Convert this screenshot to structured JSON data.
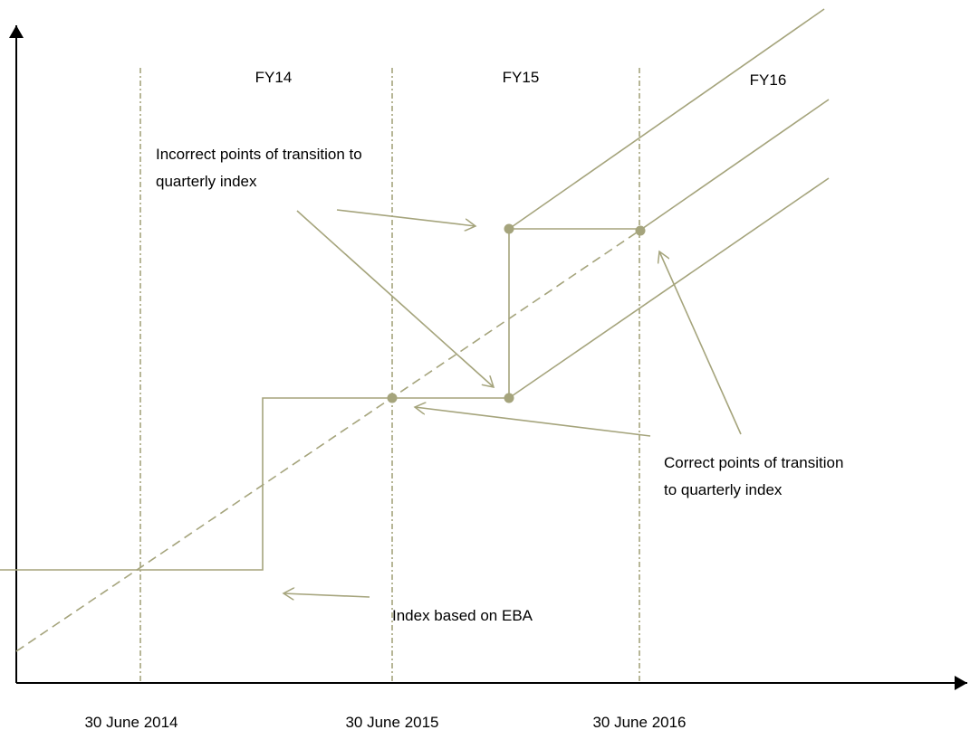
{
  "periods": [
    "FY14",
    "FY15",
    "FY16"
  ],
  "dates": [
    "30 June 2014",
    "30 June 2015",
    "30 June 2016"
  ],
  "annotations": {
    "incorrect": [
      "Incorrect points of transition to",
      "quarterly index"
    ],
    "correct": [
      "Correct points of transition",
      "to quarterly index"
    ],
    "eba": [
      "Index based on EBA"
    ]
  }
}
